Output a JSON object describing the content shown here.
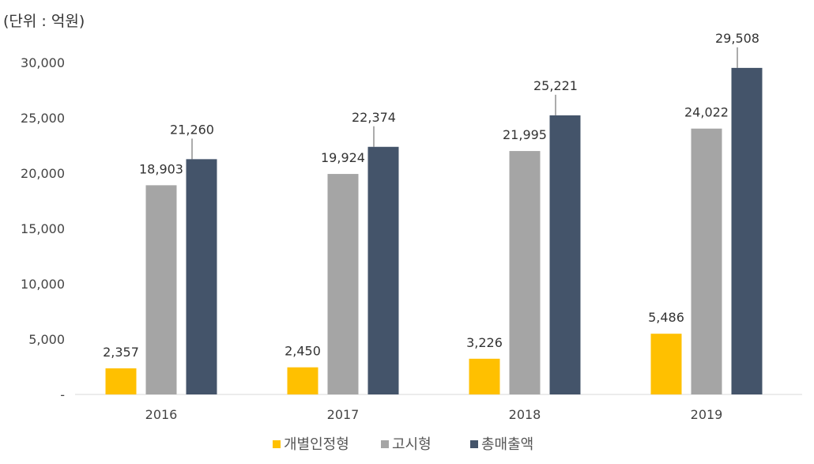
{
  "chart_data": {
    "type": "bar",
    "unit_label": "(단위 : 억원)",
    "categories": [
      "2016",
      "2017",
      "2018",
      "2019"
    ],
    "series": [
      {
        "name": "개별인정형",
        "color": "#FFC000",
        "values": [
          2357,
          2450,
          3226,
          5486
        ],
        "labels": [
          "2,357",
          "2,450",
          "3,226",
          "5,486"
        ]
      },
      {
        "name": "고시형",
        "color": "#A5A5A5",
        "values": [
          18903,
          19924,
          21995,
          24022
        ],
        "labels": [
          "18,903",
          "19,924",
          "21,995",
          "24,022"
        ]
      },
      {
        "name": "총매출액",
        "color": "#44546A",
        "values": [
          21260,
          22374,
          25221,
          29508
        ],
        "labels": [
          "21,260",
          "22,374",
          "25,221",
          "29,508"
        ]
      }
    ],
    "ylim": [
      0,
      30000
    ],
    "yticks": [
      0,
      5000,
      10000,
      15000,
      20000,
      25000,
      30000
    ],
    "ytick_labels": [
      "-",
      "5,000",
      "10,000",
      "15,000",
      "20,000",
      "25,000",
      "30,000"
    ],
    "grid": false,
    "legend_position": "bottom"
  }
}
